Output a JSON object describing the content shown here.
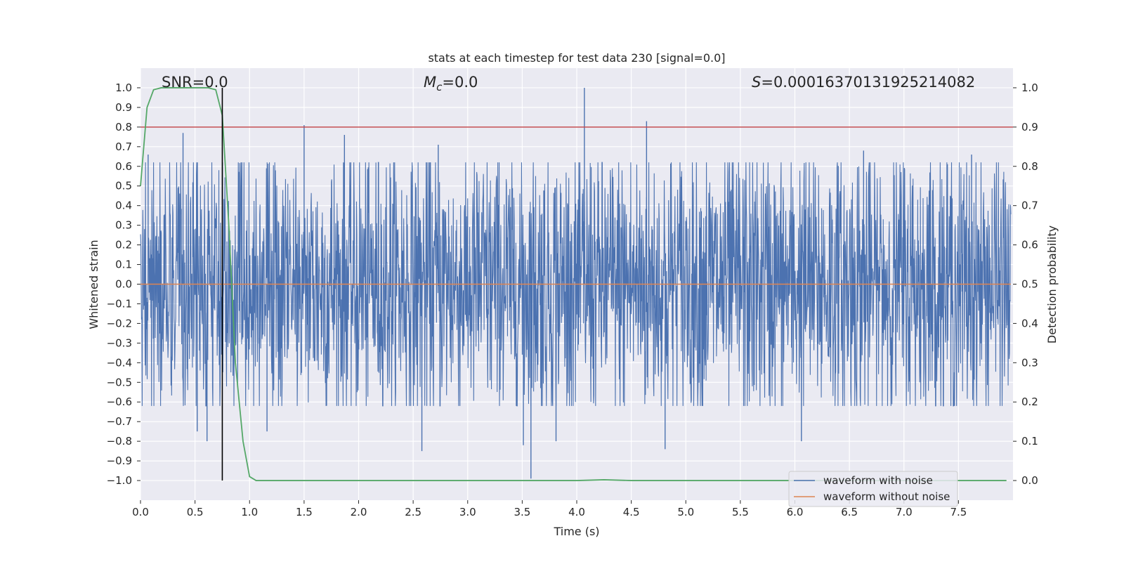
{
  "chart_data": {
    "type": "line",
    "title": "stats at each timestep for test data 230 [signal=0.0]",
    "xlabel": "Time (s)",
    "ylabel": "Whitened strain",
    "y2label": "Detection probability",
    "xlim": [
      0.0,
      8.0
    ],
    "ylim": [
      -1.1,
      1.1
    ],
    "y2lim": [
      -0.05,
      1.05
    ],
    "xticks": [
      0.0,
      0.5,
      1.0,
      1.5,
      2.0,
      2.5,
      3.0,
      3.5,
      4.0,
      4.5,
      5.0,
      5.5,
      6.0,
      6.5,
      7.0,
      7.5
    ],
    "xtick_labels": [
      "0.0",
      "0.5",
      "1.0",
      "1.5",
      "2.0",
      "2.5",
      "3.0",
      "3.5",
      "4.0",
      "4.5",
      "5.0",
      "5.5",
      "6.0",
      "6.5",
      "7.0",
      "7.5"
    ],
    "yticks": [
      1.0,
      0.9,
      0.8,
      0.7,
      0.6,
      0.5,
      0.4,
      0.3,
      0.2,
      0.1,
      0.0,
      -0.1,
      -0.2,
      -0.3,
      -0.4,
      -0.5,
      -0.6,
      -0.7,
      -0.8,
      -0.9,
      -1.0
    ],
    "ytick_labels": [
      "1.0",
      "0.9",
      "0.8",
      "0.7",
      "0.6",
      "0.5",
      "0.4",
      "0.3",
      "0.2",
      "0.1",
      "0.0",
      "−0.1",
      "−0.2",
      "−0.3",
      "−0.4",
      "−0.5",
      "−0.6",
      "−0.7",
      "−0.8",
      "−0.9",
      "−1.0"
    ],
    "y2ticks": [
      1.0,
      0.9,
      0.8,
      0.7,
      0.6,
      0.5,
      0.4,
      0.3,
      0.2,
      0.1,
      0.0
    ],
    "y2tick_labels": [
      "1.0",
      "0.9",
      "0.8",
      "0.7",
      "0.6",
      "0.5",
      "0.4",
      "0.3",
      "0.2",
      "0.1",
      "0.0"
    ],
    "annotations": {
      "snr": "SNR=0.0",
      "mc_symbol": "M",
      "mc_sub": "c",
      "mc_value": "=0.0",
      "s_symbol": "S",
      "s_value": "=0.00016370131925214082"
    },
    "series": [
      {
        "name": "waveform with noise",
        "axis": "left",
        "color": "#4c72b0",
        "description": "dense noise trace",
        "seed": 230,
        "n_samples": 2600,
        "typical_amplitude": 0.5,
        "peaks": [
          {
            "x": 0.07,
            "y": 0.66
          },
          {
            "x": 0.39,
            "y": 0.77
          },
          {
            "x": 0.52,
            "y": -0.75
          },
          {
            "x": 0.61,
            "y": -0.8
          },
          {
            "x": 1.16,
            "y": -0.75
          },
          {
            "x": 1.5,
            "y": 0.81
          },
          {
            "x": 1.87,
            "y": 0.76
          },
          {
            "x": 2.58,
            "y": -0.85
          },
          {
            "x": 2.73,
            "y": 0.71
          },
          {
            "x": 3.51,
            "y": -0.82
          },
          {
            "x": 3.58,
            "y": -0.99
          },
          {
            "x": 3.81,
            "y": -0.8
          },
          {
            "x": 4.07,
            "y": 1.0
          },
          {
            "x": 4.64,
            "y": 0.83
          },
          {
            "x": 4.81,
            "y": -0.84
          },
          {
            "x": 6.06,
            "y": -0.8
          },
          {
            "x": 6.63,
            "y": 0.68
          },
          {
            "x": 7.62,
            "y": 0.66
          }
        ]
      },
      {
        "name": "waveform without noise",
        "axis": "left",
        "color": "#dd8452",
        "x": [
          0.0,
          7.98
        ],
        "y": [
          0.0,
          0.0
        ]
      },
      {
        "name": "detection probability",
        "axis": "right",
        "color": "#55a868",
        "x": [
          0.0,
          0.06,
          0.12,
          0.19,
          0.25,
          0.31,
          0.37,
          0.44,
          0.5,
          0.56,
          0.62,
          0.69,
          0.75,
          0.81,
          0.87,
          0.94,
          1.0,
          1.06,
          1.5,
          2.0,
          3.0,
          4.0,
          4.25,
          4.5,
          5.0,
          6.0,
          7.0,
          7.94
        ],
        "y": [
          0.75,
          0.95,
          0.995,
          1.0,
          1.0,
          1.0,
          1.0,
          1.0,
          1.0,
          1.0,
          1.0,
          0.995,
          0.93,
          0.65,
          0.3,
          0.1,
          0.01,
          0.0,
          0.0,
          0.0,
          0.0,
          0.0,
          0.002,
          0.0,
          0.0,
          0.0,
          0.0,
          0.0
        ]
      }
    ],
    "threshold": {
      "axis": "right",
      "value": 0.9,
      "color": "#c44e52"
    },
    "vertical_marker": {
      "x": 0.75,
      "y_from": -1.0,
      "y_to": 1.0,
      "color": "#000000"
    },
    "legend": {
      "position": "lower-right",
      "entries": [
        {
          "label": "waveform with noise",
          "color": "#4c72b0"
        },
        {
          "label": "waveform without noise",
          "color": "#dd8452"
        }
      ]
    },
    "grid": true,
    "background": "#eaeaf2"
  }
}
